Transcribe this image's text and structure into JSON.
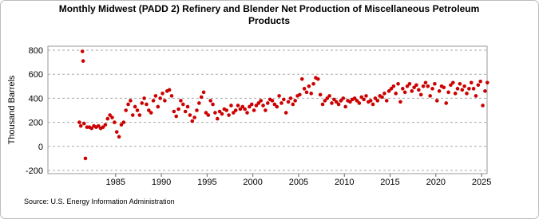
{
  "chart_data": {
    "type": "scatter",
    "title": "Monthly Midwest (PADD 2) Refinery and Blender Net Production of Miscellaneous Petroleum",
    "title_line2": "Products",
    "y_label": "Thousand Barrels",
    "source": "Source: U.S. Energy Information Administration",
    "color": "#cc0000",
    "grid": true,
    "xlim": [
      1977.6,
      2025.6
    ],
    "ylim": [
      -200,
      800
    ],
    "xticks": [
      1985,
      1990,
      1995,
      2000,
      2005,
      2010,
      2015,
      2020,
      2025
    ],
    "yticks": [
      -200,
      0,
      200,
      400,
      600,
      800
    ],
    "x": [
      1981.04,
      1981.2,
      1981.37,
      1981.45,
      1981.55,
      1981.7,
      1981.87,
      1982.125,
      1982.375,
      1982.625,
      1982.875,
      1983.125,
      1983.375,
      1983.625,
      1983.875,
      1984.125,
      1984.375,
      1984.625,
      1984.875,
      1985.125,
      1985.375,
      1985.625,
      1985.875,
      1986.125,
      1986.375,
      1986.625,
      1986.875,
      1987.125,
      1987.375,
      1987.625,
      1987.875,
      1988.125,
      1988.375,
      1988.625,
      1988.875,
      1989.125,
      1989.375,
      1989.625,
      1989.875,
      1990.125,
      1990.375,
      1990.625,
      1990.875,
      1991.125,
      1991.375,
      1991.625,
      1991.875,
      1992.125,
      1992.375,
      1992.625,
      1992.875,
      1993.125,
      1993.375,
      1993.625,
      1993.875,
      1994.125,
      1994.375,
      1994.625,
      1994.875,
      1995.125,
      1995.375,
      1995.625,
      1995.875,
      1996.125,
      1996.375,
      1996.625,
      1996.875,
      1997.125,
      1997.375,
      1997.625,
      1997.875,
      1998.125,
      1998.375,
      1998.625,
      1998.875,
      1999.125,
      1999.375,
      1999.625,
      1999.875,
      2000.125,
      2000.375,
      2000.625,
      2000.875,
      2001.125,
      2001.375,
      2001.625,
      2001.875,
      2002.125,
      2002.375,
      2002.625,
      2002.875,
      2003.125,
      2003.375,
      2003.625,
      2003.875,
      2004.125,
      2004.375,
      2004.625,
      2004.875,
      2005.125,
      2005.375,
      2005.625,
      2005.875,
      2006.125,
      2006.375,
      2006.625,
      2006.875,
      2007.125,
      2007.375,
      2007.625,
      2007.875,
      2008.125,
      2008.375,
      2008.625,
      2008.875,
      2009.125,
      2009.375,
      2009.625,
      2009.875,
      2010.125,
      2010.375,
      2010.625,
      2010.875,
      2011.125,
      2011.375,
      2011.625,
      2011.875,
      2012.125,
      2012.375,
      2012.625,
      2012.875,
      2013.125,
      2013.375,
      2013.625,
      2013.875,
      2014.125,
      2014.375,
      2014.625,
      2014.875,
      2015.125,
      2015.375,
      2015.625,
      2015.875,
      2016.125,
      2016.375,
      2016.625,
      2016.875,
      2017.125,
      2017.375,
      2017.625,
      2017.875,
      2018.125,
      2018.375,
      2018.625,
      2018.875,
      2019.125,
      2019.375,
      2019.625,
      2019.875,
      2020.125,
      2020.375,
      2020.625,
      2020.875,
      2021.125,
      2021.375,
      2021.625,
      2021.875,
      2022.125,
      2022.375,
      2022.625,
      2022.875,
      2023.125,
      2023.375,
      2023.625,
      2023.875,
      2024.125,
      2024.375,
      2024.625,
      2024.875,
      2025.125,
      2025.375,
      2025.625
    ],
    "values": [
      200,
      170,
      790,
      710,
      190,
      -100,
      160,
      160,
      150,
      170,
      160,
      170,
      150,
      160,
      180,
      230,
      260,
      240,
      200,
      120,
      80,
      180,
      200,
      300,
      350,
      380,
      260,
      330,
      300,
      260,
      360,
      400,
      350,
      300,
      280,
      380,
      420,
      330,
      400,
      440,
      380,
      460,
      470,
      420,
      290,
      250,
      310,
      380,
      350,
      290,
      330,
      260,
      210,
      240,
      300,
      360,
      410,
      450,
      280,
      260,
      380,
      350,
      280,
      230,
      290,
      270,
      310,
      300,
      260,
      340,
      280,
      300,
      340,
      310,
      330,
      310,
      280,
      330,
      350,
      300,
      340,
      360,
      380,
      340,
      300,
      360,
      390,
      380,
      350,
      330,
      420,
      360,
      390,
      280,
      370,
      400,
      350,
      380,
      420,
      430,
      560,
      480,
      450,
      500,
      440,
      520,
      570,
      560,
      430,
      350,
      380,
      400,
      420,
      360,
      390,
      370,
      350,
      380,
      400,
      330,
      380,
      370,
      390,
      400,
      380,
      360,
      410,
      390,
      420,
      370,
      380,
      350,
      400,
      380,
      420,
      410,
      440,
      380,
      460,
      480,
      500,
      440,
      520,
      370,
      480,
      450,
      500,
      520,
      460,
      490,
      510,
      470,
      430,
      500,
      530,
      500,
      420,
      480,
      520,
      380,
      460,
      500,
      490,
      360,
      450,
      510,
      530,
      440,
      480,
      520,
      470,
      500,
      440,
      480,
      530,
      480,
      420,
      510,
      540,
      340,
      460,
      530
    ]
  }
}
